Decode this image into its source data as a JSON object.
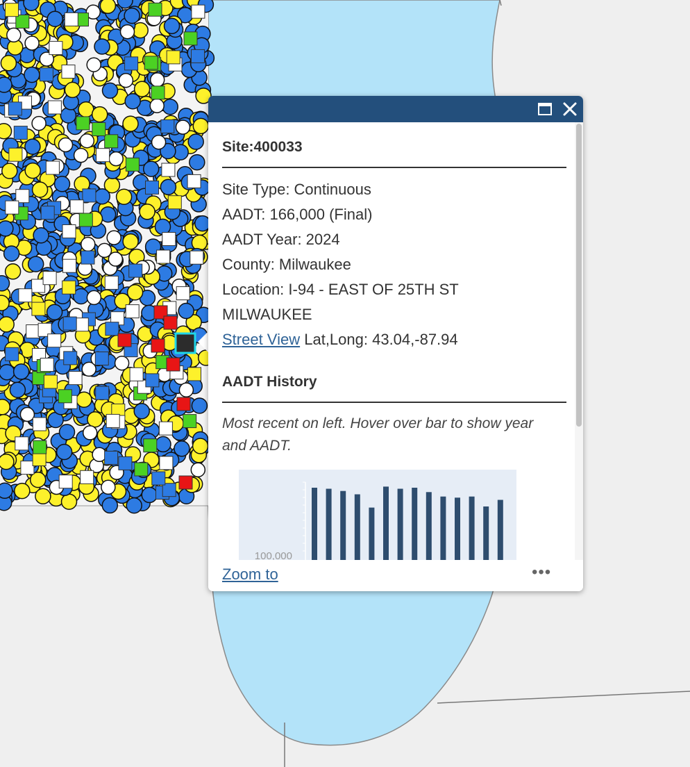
{
  "popup": {
    "title": "Site:400033",
    "site_type": "Site Type: Continuous",
    "aadt": "AADT: 166,000 (Final)",
    "aadt_year": "AADT Year: 2024",
    "county": "County: Milwaukee",
    "location_line1": "Location: I-94 - EAST OF 25TH ST",
    "location_line2": "MILWAUKEE",
    "street_view_link": "Street View",
    "lat_long": "Lat,Long: 43.04,-87.94",
    "history_title": "AADT History",
    "history_hint": "Most recent on left. Hover over bar to show year and AADT.",
    "zoom_to": "Zoom to",
    "more_label": "•••"
  },
  "chart_data": {
    "type": "bar",
    "title": "",
    "xlabel": "",
    "ylabel": "",
    "y_tick_labels": [
      "100,000"
    ],
    "values": [
      166000,
      165000,
      163000,
      160000,
      148000,
      167000,
      165000,
      166000,
      162000,
      158000,
      157000,
      158000,
      149000,
      155000
    ],
    "bar_color": "#2e4d6e",
    "background": "#e6edf6"
  },
  "colors": {
    "header": "#234f7c",
    "link": "#2f6397",
    "water": "#b3e3f9",
    "land": "#efefef",
    "marker_blue": "#2d7be3",
    "marker_yellow": "#fdf12b",
    "marker_green": "#4bd123",
    "marker_red": "#e81515",
    "marker_selected": "#2c2c2c"
  }
}
